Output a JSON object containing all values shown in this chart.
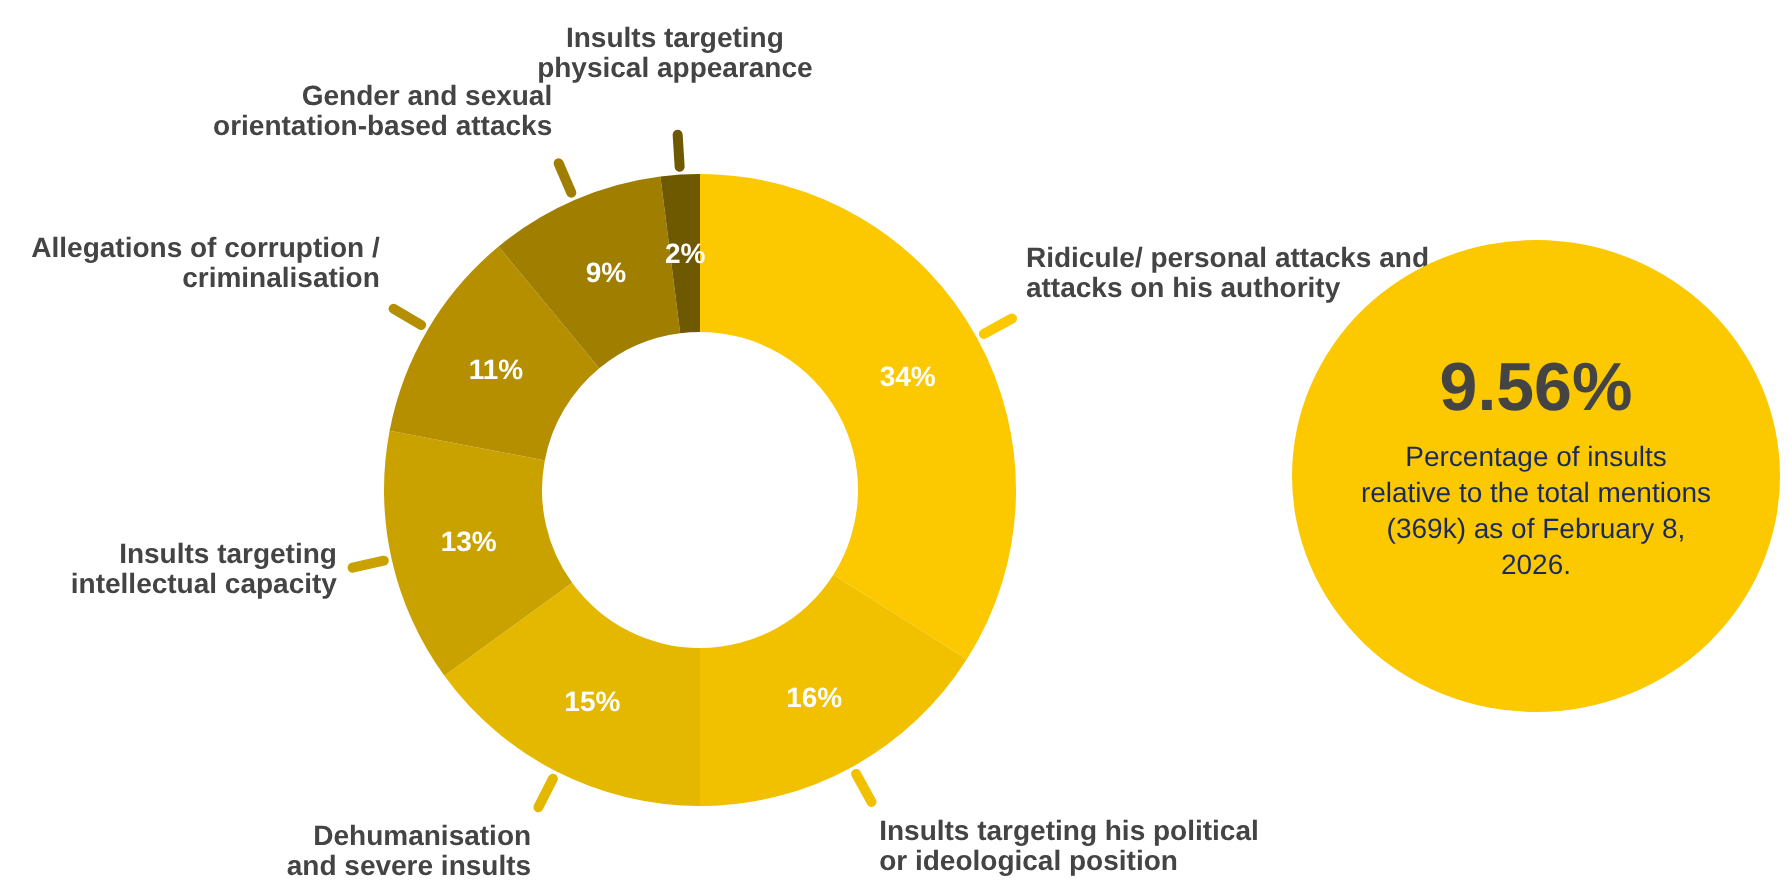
{
  "chart_data": {
    "type": "donut",
    "categories": [
      "Ridicule/ personal attacks and\nattacks on his authority",
      "Insults targeting his political\nor ideological position",
      "Dehumanisation\nand severe insults",
      "Insults targeting\nintellectual capacity",
      "Allegations of corruption /\ncriminalisation",
      "Gender and sexual\norientation-based attacks",
      "Insults targeting\nphysical appearance"
    ],
    "values": [
      34,
      16,
      15,
      13,
      11,
      9,
      2
    ],
    "colors": [
      "#fcc800",
      "#f1c100",
      "#e5b800",
      "#c9a200",
      "#b58f00",
      "#9f7e00",
      "#6e5800"
    ],
    "value_labels": [
      "34%",
      "16%",
      "15%",
      "13%",
      "11%",
      "9%",
      "2%"
    ],
    "legend": false,
    "annotations": [
      "9.56%",
      "Percentage of insults\nrelative to the total mentions\n(369k) as of February 8,\n2026."
    ]
  }
}
